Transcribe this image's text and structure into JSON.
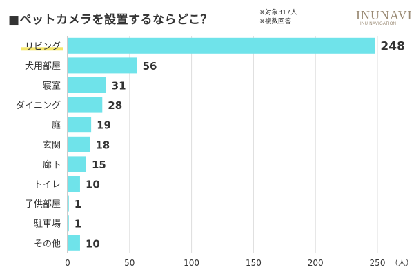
{
  "title": "■ペットカメラを設置するならどこ？",
  "notes": [
    "※対象317人",
    "※複数回答"
  ],
  "brand": {
    "name": "INUNAVI",
    "tagline": "INU NAVIGATION",
    "color": "#9a8a74"
  },
  "chart_data": {
    "type": "bar",
    "orientation": "horizontal",
    "categories": [
      "リビング",
      "犬用部屋",
      "寝室",
      "ダイニング",
      "庭",
      "玄関",
      "廊下",
      "トイレ",
      "子供部屋",
      "駐車場",
      "その他"
    ],
    "values": [
      248,
      56,
      31,
      28,
      19,
      18,
      15,
      10,
      1,
      1,
      10
    ],
    "x_ticks": [
      "0",
      "50",
      "100",
      "150",
      "200",
      "250"
    ],
    "xlim": [
      0,
      250
    ],
    "unit": "（人）",
    "highlight_index": 0,
    "bar_color": "#6fe3ea",
    "highlight_color": "#f5e66a",
    "grid": true
  }
}
